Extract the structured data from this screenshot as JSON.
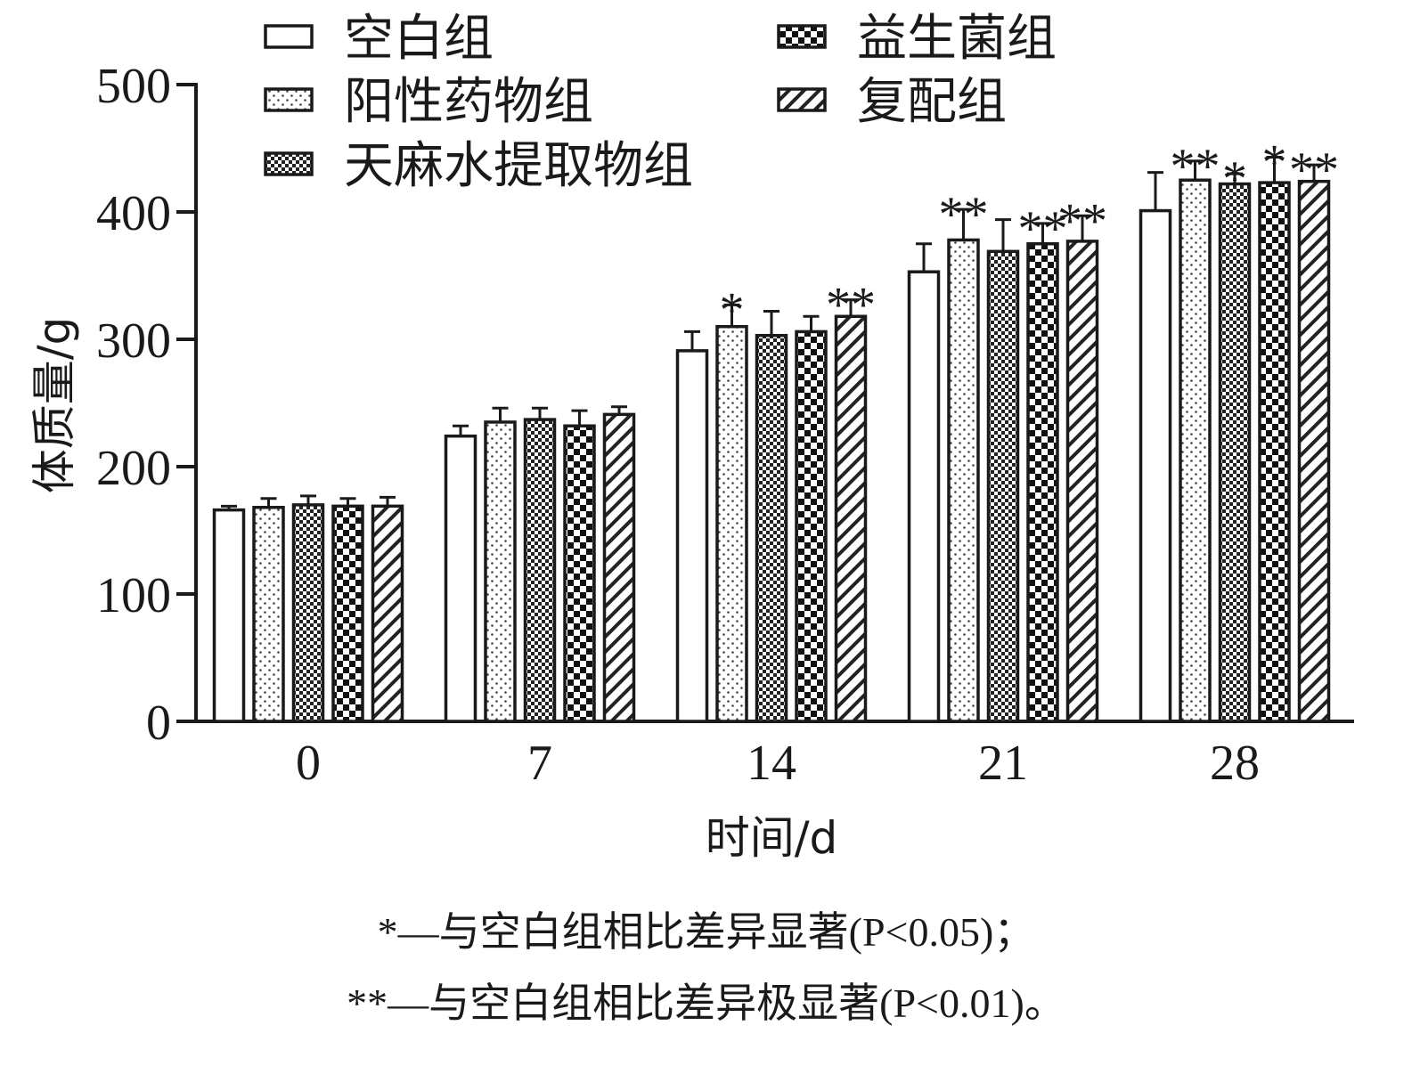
{
  "chart_data": {
    "type": "bar",
    "title": "",
    "xlabel": "时间/d",
    "ylabel": "体质量/g",
    "ylim": [
      0,
      500
    ],
    "yticks": [
      0,
      100,
      200,
      300,
      400,
      500
    ],
    "categories": [
      "0",
      "7",
      "14",
      "21",
      "28"
    ],
    "grid": false,
    "legend_position": "top",
    "series": [
      {
        "name": "空白组",
        "pattern": "blank",
        "values": [
          166,
          224,
          291,
          353,
          401
        ],
        "errors": [
          3,
          8,
          15,
          22,
          30
        ],
        "marks": [
          "",
          "",
          "",
          "",
          ""
        ]
      },
      {
        "name": "阳性药物组",
        "pattern": "dots",
        "values": [
          168,
          235,
          310,
          378,
          425
        ],
        "errors": [
          7,
          11,
          17,
          24,
          15
        ],
        "marks": [
          "",
          "",
          "*",
          "**",
          "**"
        ]
      },
      {
        "name": "天麻水提取物组",
        "pattern": "fine-check",
        "values": [
          170,
          237,
          303,
          369,
          422
        ],
        "errors": [
          7,
          9,
          19,
          25,
          8
        ],
        "marks": [
          "",
          "",
          "",
          "",
          "*"
        ]
      },
      {
        "name": "益生菌组",
        "pattern": "checker",
        "values": [
          169,
          232,
          306,
          375,
          423
        ],
        "errors": [
          6,
          12,
          12,
          16,
          20
        ],
        "marks": [
          "",
          "",
          "",
          "**",
          "*"
        ]
      },
      {
        "name": "复配组",
        "pattern": "diagonal",
        "values": [
          169,
          241,
          318,
          377,
          424
        ],
        "errors": [
          7,
          6,
          13,
          20,
          13
        ],
        "marks": [
          "",
          "",
          "**",
          "**",
          "**"
        ]
      }
    ]
  },
  "footnotes": {
    "line1": "*—与空白组相比差异显著(P<0.05)；",
    "line2": "**—与空白组相比差异极显著(P<0.01)。"
  }
}
